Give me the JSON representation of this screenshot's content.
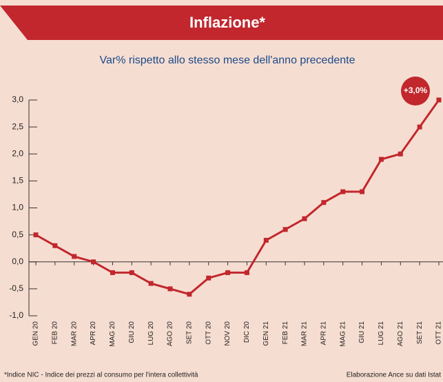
{
  "chart_data": {
    "type": "line",
    "title": "Inflazione*",
    "subtitle": "Var% rispetto allo stesso mese dell'anno precedente",
    "annotation": "+3,0%",
    "footnote": "*Indice NIC - Indice dei prezzi al consumo per l'intera collettività",
    "source": "Elaborazione Ance su dati Istat",
    "categories": [
      "GEN 20",
      "FEB 20",
      "MAR 20",
      "APR 20",
      "MAG 20",
      "GIU 20",
      "LUG 20",
      "AGO 20",
      "SET 20",
      "OTT 20",
      "NOV 20",
      "DIC 20",
      "GEN 21",
      "FEB 21",
      "MAR 21",
      "APR 21",
      "MAG 21",
      "GIU 21",
      "LUG 21",
      "AGO 21",
      "SET 21",
      "OTT 21"
    ],
    "series": [
      {
        "name": "Inflazione",
        "color": "#c1272d",
        "values": [
          0.5,
          0.3,
          0.1,
          0.0,
          -0.2,
          -0.2,
          -0.4,
          -0.5,
          -0.6,
          -0.3,
          -0.2,
          -0.2,
          0.4,
          0.6,
          0.8,
          1.1,
          1.3,
          1.3,
          1.9,
          2.0,
          2.5,
          3.0
        ]
      }
    ],
    "ylim": [
      -1,
      3
    ],
    "yticks": [
      {
        "value": -1,
        "label": "-1,0"
      },
      {
        "value": -0.5,
        "label": "-0,5"
      },
      {
        "value": 0,
        "label": "0,0"
      },
      {
        "value": 0.5,
        "label": "0,5"
      },
      {
        "value": 1,
        "label": "1,0"
      },
      {
        "value": 1.5,
        "label": "1,5"
      },
      {
        "value": 2,
        "label": "2,0"
      },
      {
        "value": 2.5,
        "label": "2,5"
      },
      {
        "value": 3,
        "label": "3,0"
      }
    ],
    "grid": false
  }
}
